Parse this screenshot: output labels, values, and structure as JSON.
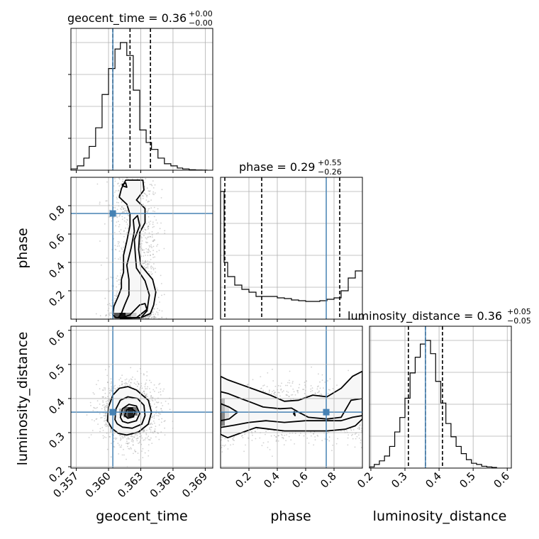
{
  "chart_data": {
    "type": "corner",
    "parameters": [
      "geocent_time",
      "phase",
      "luminosity_distance"
    ],
    "truths": {
      "geocent_time": 0.3604,
      "phase": 0.745,
      "luminosity_distance": 0.36
    },
    "panels": {
      "geocent_time": {
        "title": {
          "main": "geocent_time = 0.36",
          "sup": "+0.00",
          "sub": "−0.00"
        },
        "xlabel": "geocent_time",
        "xlim": [
          0.3565,
          0.3697
        ],
        "xticks": [
          "0.357",
          "0.360",
          "0.363",
          "0.366",
          "0.369"
        ],
        "quantiles": [
          0.3604,
          0.362,
          0.3639
        ],
        "hist_edges": [
          0.3565,
          0.3571,
          0.3577,
          0.3582,
          0.3588,
          0.3594,
          0.36,
          0.3606,
          0.3611,
          0.3617,
          0.3623,
          0.3629,
          0.3635,
          0.364,
          0.3646,
          0.3652,
          0.3658,
          0.3664,
          0.3669,
          0.3675,
          0.3681,
          0.3687,
          0.3692
        ],
        "hist_counts": [
          0.3,
          1.0,
          2.8,
          5.5,
          9.8,
          17.5,
          23.5,
          28.0,
          29.5,
          26.5,
          18.5,
          9.3,
          6.4,
          4.8,
          2.8,
          1.5,
          1.0,
          0.5,
          0.3,
          0.1,
          0.05,
          0.02
        ]
      },
      "phase": {
        "title": {
          "main": "phase = 0.29",
          "sup": "+0.55",
          "sub": "−0.26"
        },
        "xlabel": "phase",
        "ylabel": "phase",
        "lim": [
          0.0,
          1.0
        ],
        "ticks": [
          "0.2",
          "0.4",
          "0.6",
          "0.8"
        ],
        "quantiles": [
          0.03,
          0.29,
          0.84
        ],
        "hist_edges": [
          0.0,
          0.025,
          0.05,
          0.1,
          0.15,
          0.2,
          0.25,
          0.3,
          0.35,
          0.4,
          0.45,
          0.5,
          0.55,
          0.6,
          0.65,
          0.7,
          0.75,
          0.8,
          0.85,
          0.9,
          0.95,
          1.0
        ],
        "hist_counts": [
          9.0,
          4.0,
          3.0,
          2.4,
          2.1,
          1.9,
          1.6,
          1.6,
          1.6,
          1.5,
          1.45,
          1.35,
          1.3,
          1.25,
          1.25,
          1.3,
          1.4,
          1.5,
          2.0,
          2.9,
          3.4
        ]
      },
      "luminosity_distance": {
        "title": {
          "main": "luminosity_distance = 0.36",
          "sup": "+0.05",
          "sub": "−0.05"
        },
        "xlabel": "luminosity_distance",
        "ylabel": "luminosity_distance",
        "lim": [
          0.196,
          0.612
        ],
        "ticks": [
          "0.2",
          "0.3",
          "0.4",
          "0.5",
          "0.6"
        ],
        "quantiles": [
          0.31,
          0.36,
          0.41
        ],
        "hist_edges": [
          0.196,
          0.21,
          0.225,
          0.24,
          0.255,
          0.27,
          0.285,
          0.3,
          0.315,
          0.33,
          0.345,
          0.36,
          0.375,
          0.39,
          0.405,
          0.42,
          0.435,
          0.45,
          0.465,
          0.48,
          0.495,
          0.51,
          0.525,
          0.54,
          0.555,
          0.57
        ],
        "hist_counts": [
          0.1,
          0.3,
          0.6,
          1.0,
          1.8,
          3.0,
          4.2,
          5.8,
          7.9,
          9.2,
          10.3,
          10.6,
          9.5,
          7.2,
          5.4,
          3.7,
          2.6,
          1.8,
          1.2,
          0.7,
          0.4,
          0.3,
          0.15,
          0.1,
          0.05
        ]
      }
    },
    "contours": {
      "geocent_time_vs_phase": [
        [
          [
            0.3607,
            0.01
          ],
          [
            0.3604,
            0.03
          ],
          [
            0.3605,
            0.09
          ],
          [
            0.3609,
            0.16
          ],
          [
            0.3612,
            0.22
          ],
          [
            0.3612,
            0.28
          ],
          [
            0.3614,
            0.33
          ],
          [
            0.3614,
            0.45
          ],
          [
            0.3617,
            0.55
          ],
          [
            0.362,
            0.66
          ],
          [
            0.362,
            0.74
          ],
          [
            0.3617,
            0.81
          ],
          [
            0.361,
            0.86
          ],
          [
            0.3612,
            0.92
          ],
          [
            0.3616,
            0.98
          ],
          [
            0.3632,
            0.98
          ],
          [
            0.3633,
            0.91
          ],
          [
            0.3626,
            0.84
          ],
          [
            0.3634,
            0.78
          ],
          [
            0.3634,
            0.68
          ],
          [
            0.3629,
            0.61
          ],
          [
            0.3628,
            0.49
          ],
          [
            0.363,
            0.38
          ],
          [
            0.3641,
            0.28
          ],
          [
            0.3644,
            0.19
          ],
          [
            0.3642,
            0.1
          ],
          [
            0.3639,
            0.04
          ],
          [
            0.363,
            0.01
          ]
        ],
        [
          [
            0.3609,
            0.01
          ],
          [
            0.3612,
            0.04
          ],
          [
            0.3615,
            0.1
          ],
          [
            0.3619,
            0.17
          ],
          [
            0.3619,
            0.28
          ],
          [
            0.3617,
            0.38
          ],
          [
            0.3621,
            0.5
          ],
          [
            0.3624,
            0.62
          ],
          [
            0.3623,
            0.7
          ],
          [
            0.3627,
            0.73
          ],
          [
            0.3629,
            0.66
          ],
          [
            0.3624,
            0.56
          ],
          [
            0.3625,
            0.45
          ],
          [
            0.3626,
            0.36
          ],
          [
            0.3634,
            0.27
          ],
          [
            0.3638,
            0.17
          ],
          [
            0.3636,
            0.07
          ],
          [
            0.3626,
            0.01
          ]
        ],
        [
          [
            0.3611,
            0.005
          ],
          [
            0.362,
            0.03
          ],
          [
            0.3629,
            0.1
          ],
          [
            0.3634,
            0.11
          ],
          [
            0.3636,
            0.06
          ],
          [
            0.363,
            0.01
          ]
        ],
        [
          [
            0.3613,
            0.94
          ],
          [
            0.3617,
            0.93
          ],
          [
            0.3616,
            0.96
          ],
          [
            0.3613,
            0.95
          ]
        ]
      ],
      "geocent_time_vs_luminosity_distance": [
        [
          [
            0.3599,
            0.335
          ],
          [
            0.36,
            0.375
          ],
          [
            0.3604,
            0.41
          ],
          [
            0.361,
            0.43
          ],
          [
            0.3618,
            0.435
          ],
          [
            0.3626,
            0.425
          ],
          [
            0.3637,
            0.395
          ],
          [
            0.364,
            0.36
          ],
          [
            0.3637,
            0.325
          ],
          [
            0.3628,
            0.302
          ],
          [
            0.3617,
            0.293
          ],
          [
            0.3609,
            0.298
          ],
          [
            0.3603,
            0.313
          ]
        ],
        [
          [
            0.3606,
            0.338
          ],
          [
            0.3607,
            0.37
          ],
          [
            0.3611,
            0.395
          ],
          [
            0.3618,
            0.405
          ],
          [
            0.3627,
            0.4
          ],
          [
            0.3633,
            0.38
          ],
          [
            0.3634,
            0.35
          ],
          [
            0.3631,
            0.325
          ],
          [
            0.3622,
            0.313
          ],
          [
            0.3613,
            0.316
          ],
          [
            0.3608,
            0.326
          ]
        ],
        [
          [
            0.3611,
            0.345
          ],
          [
            0.3613,
            0.37
          ],
          [
            0.3619,
            0.383
          ],
          [
            0.3626,
            0.378
          ],
          [
            0.3629,
            0.356
          ],
          [
            0.3626,
            0.335
          ],
          [
            0.3618,
            0.328
          ],
          [
            0.3613,
            0.333
          ]
        ],
        [
          [
            0.3615,
            0.35
          ],
          [
            0.3617,
            0.367
          ],
          [
            0.3621,
            0.372
          ],
          [
            0.3625,
            0.362
          ],
          [
            0.3623,
            0.346
          ],
          [
            0.3618,
            0.342
          ]
        ]
      ],
      "phase_vs_luminosity_distance": [
        [
          [
            0.0,
            0.465
          ],
          [
            0.05,
            0.455
          ],
          [
            0.15,
            0.44
          ],
          [
            0.25,
            0.425
          ],
          [
            0.35,
            0.41
          ],
          [
            0.45,
            0.392
          ],
          [
            0.55,
            0.395
          ],
          [
            0.65,
            0.41
          ],
          [
            0.75,
            0.405
          ],
          [
            0.85,
            0.43
          ],
          [
            0.93,
            0.465
          ],
          [
            1.0,
            0.48
          ],
          [
            1.0,
            0.34
          ],
          [
            0.95,
            0.32
          ],
          [
            0.88,
            0.31
          ],
          [
            0.75,
            0.305
          ],
          [
            0.6,
            0.305
          ],
          [
            0.45,
            0.305
          ],
          [
            0.35,
            0.31
          ],
          [
            0.25,
            0.315
          ],
          [
            0.15,
            0.3
          ],
          [
            0.05,
            0.285
          ],
          [
            0.0,
            0.295
          ]
        ],
        [
          [
            0.0,
            0.42
          ],
          [
            0.05,
            0.415
          ],
          [
            0.13,
            0.402
          ],
          [
            0.22,
            0.388
          ],
          [
            0.3,
            0.375
          ],
          [
            0.42,
            0.37
          ],
          [
            0.5,
            0.372
          ],
          [
            0.55,
            0.36
          ],
          [
            0.62,
            0.345
          ],
          [
            0.75,
            0.34
          ],
          [
            0.85,
            0.345
          ],
          [
            0.92,
            0.395
          ],
          [
            1.0,
            0.4
          ],
          [
            1.0,
            0.35
          ],
          [
            0.93,
            0.345
          ],
          [
            0.85,
            0.335
          ],
          [
            0.6,
            0.335
          ],
          [
            0.45,
            0.33
          ],
          [
            0.32,
            0.335
          ],
          [
            0.2,
            0.33
          ],
          [
            0.1,
            0.322
          ],
          [
            0.0,
            0.315
          ]
        ],
        [
          [
            0.0,
            0.385
          ],
          [
            0.06,
            0.375
          ],
          [
            0.12,
            0.36
          ],
          [
            0.06,
            0.34
          ],
          [
            0.0,
            0.335
          ]
        ],
        [
          [
            0.515,
            0.355
          ],
          [
            0.525,
            0.35
          ],
          [
            0.52,
            0.362
          ]
        ]
      ]
    }
  }
}
